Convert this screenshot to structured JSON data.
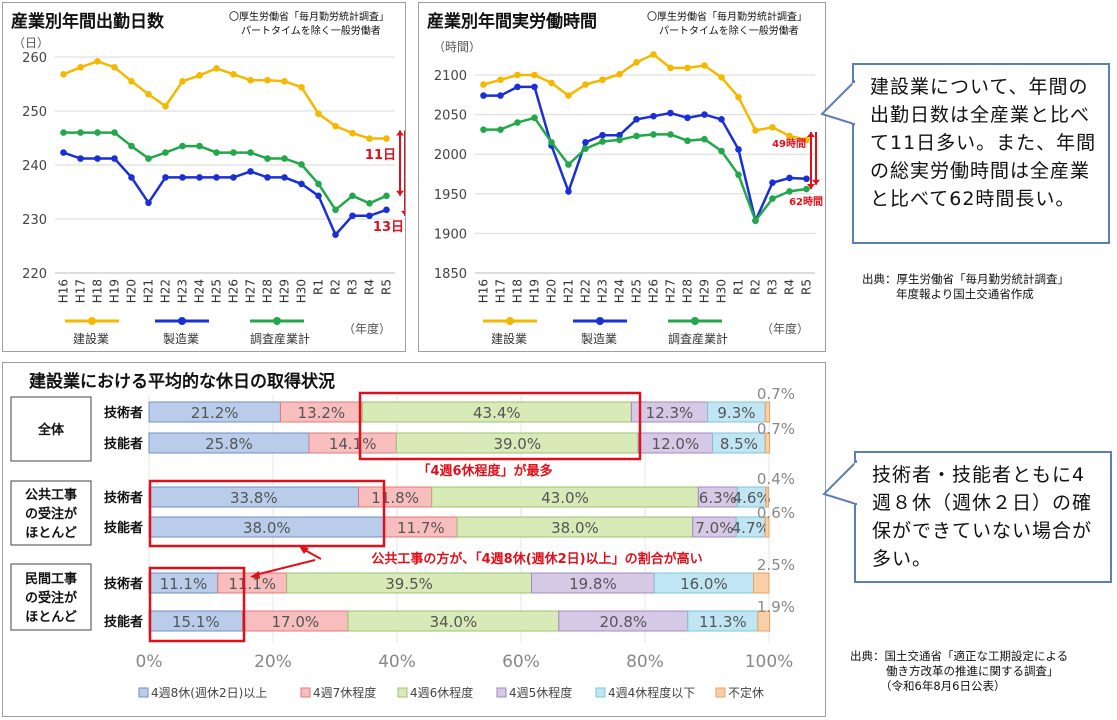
{
  "left_chart": {
    "title": "産業別年間出勤日数",
    "note_line1": "〇厚生労働省「毎月勤労統計調査」",
    "note_line2": "パートタイムを除く一般労働者",
    "unit": "（日）",
    "xaxis_unit": "（年度）",
    "diff_upper_label": "11日",
    "diff_lower_label": "13日"
  },
  "right_chart": {
    "title": "産業別年間実労働時間",
    "note_line1": "〇厚生労働省「毎月勤労統計調査」",
    "note_line2": "パートタイムを除く一般労働者",
    "unit": "（時間）",
    "xaxis_unit": "（年度）",
    "diff_upper_label": "49時間",
    "diff_lower_label": "62時間"
  },
  "bottom_chart": {
    "title": "建設業における平均的な休日の取得状況",
    "group_labels": [
      {
        "lines": [
          "全体"
        ]
      },
      {
        "lines": [
          "公共工事",
          "の受注が",
          "ほとんど"
        ]
      },
      {
        "lines": [
          "民間工事",
          "の受注が",
          "ほとんど"
        ]
      }
    ],
    "annotation_top": "「4週6休程度」が最多",
    "annotation_mid": "公共工事の方が、「4週8休(週休2日)以上」の割合が高い"
  },
  "callout_top": {
    "text": "建設業について、年間の出勤日数は全産業と比べて11日多い。また、年間の総実労働時間は全産業と比べて62時間長い。"
  },
  "callout_bottom": {
    "text": "技術者・技能者ともに4週８休（週休２日）の確保ができていない場合が多い。"
  },
  "source_top": {
    "line1": "出典：厚生労働省「毎月勤労統計調査」",
    "line2": "年度報より国土交通省作成"
  },
  "source_bottom": {
    "line1": "出典：国土交通省「適正な工期設定による",
    "line2": "働き方改革の推進に関する調査」",
    "line3": "（令和6年8月6日公表）"
  },
  "chart_data": [
    {
      "type": "line",
      "title": "産業別年間出勤日数",
      "ylabel": "（日）",
      "xlabel": "（年度）",
      "ylim": [
        220,
        260
      ],
      "yticks": [
        220,
        230,
        240,
        250,
        260
      ],
      "grid": true,
      "legend_position": "bottom",
      "categories": [
        "H16",
        "H17",
        "H18",
        "H19",
        "H20",
        "H21",
        "H22",
        "H23",
        "H24",
        "H25",
        "H26",
        "H27",
        "H28",
        "H29",
        "H30",
        "R1",
        "R2",
        "R3",
        "R4",
        "R5"
      ],
      "series": [
        {
          "name": "建設業",
          "color": "#f5b800",
          "values": [
            256.8,
            258.1,
            259.2,
            258.1,
            255.5,
            253.1,
            250.9,
            255.5,
            256.6,
            257.9,
            256.8,
            255.7,
            255.7,
            255.5,
            254.4,
            249.5,
            247.2,
            245.9,
            244.9,
            244.9
          ]
        },
        {
          "name": "製造業",
          "color": "#1a2fd6",
          "values": [
            242.3,
            241.2,
            241.2,
            241.2,
            237.7,
            233.0,
            237.7,
            237.7,
            237.7,
            237.7,
            237.7,
            238.8,
            237.7,
            237.7,
            236.5,
            234.3,
            227.1,
            230.6,
            230.6,
            231.7
          ]
        },
        {
          "name": "調査産業計",
          "color": "#22a84a",
          "values": [
            246.0,
            246.0,
            246.0,
            246.0,
            243.5,
            241.2,
            242.3,
            243.5,
            243.5,
            242.3,
            242.3,
            242.3,
            241.2,
            241.2,
            240.1,
            236.5,
            231.7,
            234.3,
            232.9,
            234.3
          ]
        }
      ],
      "annotations": [
        "11日",
        "13日"
      ]
    },
    {
      "type": "line",
      "title": "産業別年間実労働時間",
      "ylabel": "（時間）",
      "xlabel": "（年度）",
      "ylim": [
        1850,
        2100
      ],
      "yticks": [
        1850,
        1900,
        1950,
        2000,
        2050,
        2100
      ],
      "grid": true,
      "legend_position": "bottom",
      "categories": [
        "H16",
        "H17",
        "H18",
        "H19",
        "H20",
        "H21",
        "H22",
        "H23",
        "H24",
        "H25",
        "H26",
        "H27",
        "H28",
        "H29",
        "H30",
        "R1",
        "R2",
        "R3",
        "R4",
        "R5"
      ],
      "series": [
        {
          "name": "建設業",
          "color": "#f5b800",
          "values": [
            2088,
            2094,
            2100,
            2100,
            2090,
            2074,
            2088,
            2094,
            2101,
            2116,
            2126,
            2109,
            2109,
            2112,
            2097,
            2072,
            2030,
            2034,
            2023,
            2018
          ]
        },
        {
          "name": "製造業",
          "color": "#1a2fd6",
          "values": [
            2074,
            2074,
            2085,
            2085,
            2011,
            1953,
            2015,
            2024,
            2024,
            2044,
            2048,
            2052,
            2046,
            2050,
            2044,
            2006,
            1916,
            1964,
            1970,
            1969
          ]
        },
        {
          "name": "調査産業計",
          "color": "#22a84a",
          "values": [
            2031,
            2031,
            2040,
            2046,
            2015,
            1987,
            2007,
            2016,
            2018,
            2023,
            2025,
            2025,
            2017,
            2019,
            2004,
            1974,
            1916,
            1944,
            1953,
            1956
          ]
        }
      ],
      "annotations": [
        "49時間",
        "62時間"
      ]
    },
    {
      "type": "bar",
      "orientation": "horizontal",
      "stacked": true,
      "title": "建設業における平均的な休日の取得状況",
      "xlim": [
        0,
        100
      ],
      "xticks": [
        "0%",
        "20%",
        "40%",
        "60%",
        "80%",
        "100%"
      ],
      "legend_position": "bottom",
      "categories_legend": [
        "4週8休(週休2日)以上",
        "4週7休程度",
        "4週6休程度",
        "4週5休程度",
        "4週4休程度以下",
        "不定休"
      ],
      "segment_colors": [
        "#b9cdea",
        "#f8bdbd",
        "#d8eab8",
        "#d6c9e6",
        "#bfe6f2",
        "#f8cfa6"
      ],
      "segment_borders": [
        "#6f8ec6",
        "#e07a7a",
        "#9cc26b",
        "#a28ac4",
        "#7cc4dd",
        "#e8a063"
      ],
      "rows": [
        {
          "group": "全体",
          "label": "技術者",
          "values": [
            21.2,
            13.2,
            43.4,
            12.3,
            9.3,
            0.7
          ],
          "labels": [
            "21.2%",
            "13.2%",
            "43.4%",
            "12.3%",
            "9.3%",
            "0.7%"
          ]
        },
        {
          "group": "全体",
          "label": "技能者",
          "values": [
            25.8,
            14.1,
            39.0,
            12.0,
            8.5,
            0.7
          ],
          "labels": [
            "25.8%",
            "14.1%",
            "39.0%",
            "12.0%",
            "8.5%",
            "0.7%"
          ]
        },
        {
          "group": "公共工事の受注がほとんど",
          "label": "技術者",
          "values": [
            33.8,
            11.8,
            43.0,
            6.3,
            4.6,
            0.4
          ],
          "labels": [
            "33.8%",
            "11.8%",
            "43.0%",
            "6.3%",
            "4.6%",
            "0.4%"
          ]
        },
        {
          "group": "公共工事の受注がほとんど",
          "label": "技能者",
          "values": [
            38.0,
            11.7,
            38.0,
            7.0,
            4.7,
            0.6
          ],
          "labels": [
            "38.0%",
            "11.7%",
            "38.0%",
            "7.0%",
            "4.7%",
            "0.6%"
          ]
        },
        {
          "group": "民間工事の受注がほとんど",
          "label": "技術者",
          "values": [
            11.1,
            11.1,
            39.5,
            19.8,
            16.0,
            2.5
          ],
          "labels": [
            "11.1%",
            "11.1%",
            "39.5%",
            "19.8%",
            "16.0%",
            "2.5%"
          ]
        },
        {
          "group": "民間工事の受注がほとんど",
          "label": "技能者",
          "values": [
            15.1,
            17.0,
            34.0,
            20.8,
            11.3,
            1.9
          ],
          "labels": [
            "15.1%",
            "17.0%",
            "34.0%",
            "20.8%",
            "11.3%",
            "1.9%"
          ]
        }
      ]
    }
  ]
}
